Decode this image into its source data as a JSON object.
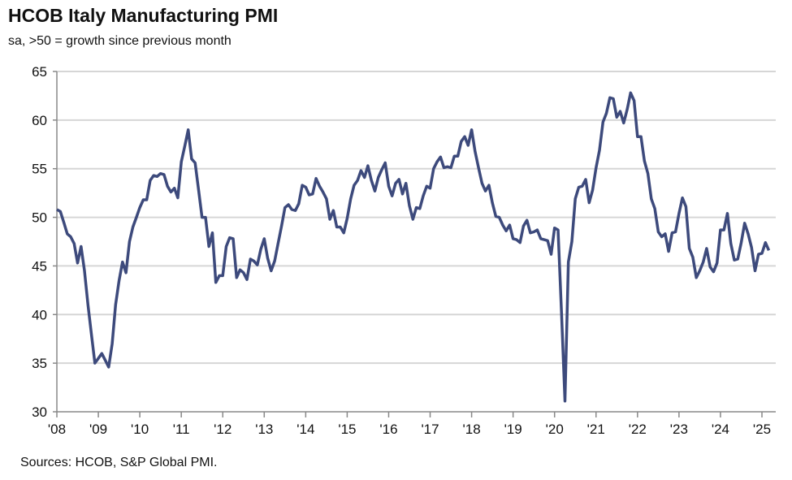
{
  "chart_data": {
    "type": "line",
    "title": "HCOB Italy Manufacturing PMI",
    "subtitle": "sa, >50 = growth since previous month",
    "source": "Sources: HCOB, S&P Global PMI.",
    "xlabel": "",
    "ylabel": "",
    "ylim": [
      30,
      65
    ],
    "yticks": [
      30,
      35,
      40,
      45,
      50,
      55,
      60,
      65
    ],
    "xticks": [
      "'08",
      "'09",
      "'10",
      "'11",
      "'12",
      "'13",
      "'14",
      "'15",
      "'16",
      "'17",
      "'18",
      "'19",
      "'20",
      "'21",
      "'22",
      "'23",
      "'24",
      "'25"
    ],
    "grid": true,
    "legend": "none",
    "line_color": "#3d4a7c",
    "x_start": "2008-01",
    "x_end": "2025-03",
    "frequency": "monthly",
    "series": [
      {
        "values": [
          50.8,
          50.6,
          49.5,
          48.3,
          48.0,
          47.3,
          45.3,
          47.0,
          44.5,
          41.0,
          38.0,
          35.0,
          35.5,
          36.0,
          35.3,
          34.6,
          37.0,
          41.0,
          43.5,
          45.4,
          44.3,
          47.5,
          49.0,
          50.0,
          51.0,
          51.8,
          51.8,
          53.8,
          54.3,
          54.2,
          54.5,
          54.4,
          53.2,
          52.6,
          53.0,
          52.0,
          55.7,
          57.3,
          59.0,
          56.0,
          55.6,
          52.8,
          50.0,
          50.0,
          47.0,
          48.4,
          43.3,
          44.0,
          44.0,
          47.0,
          47.9,
          47.8,
          43.8,
          44.6,
          44.3,
          43.6,
          45.7,
          45.5,
          45.1,
          46.7,
          47.8,
          45.8,
          44.5,
          45.5,
          47.3,
          49.1,
          51.0,
          51.3,
          50.8,
          50.7,
          51.4,
          53.3,
          53.1,
          52.3,
          52.4,
          54.0,
          53.2,
          52.6,
          51.9,
          49.8,
          50.7,
          49.0,
          49.0,
          48.4,
          49.9,
          51.9,
          53.3,
          53.8,
          54.8,
          54.1,
          55.3,
          53.8,
          52.7,
          54.1,
          54.9,
          55.6,
          53.2,
          52.2,
          53.5,
          53.9,
          52.4,
          53.5,
          51.2,
          49.8,
          51.0,
          50.9,
          52.2,
          53.2,
          53.0,
          55.0,
          55.7,
          56.2,
          55.1,
          55.2,
          55.1,
          56.3,
          56.3,
          57.8,
          58.3,
          57.4,
          59.0,
          56.8,
          55.1,
          53.5,
          52.7,
          53.3,
          51.5,
          50.1,
          50.0,
          49.2,
          48.6,
          49.2,
          47.8,
          47.7,
          47.4,
          49.1,
          49.7,
          48.4,
          48.5,
          48.7,
          47.8,
          47.7,
          47.6,
          46.2,
          48.9,
          48.7,
          40.3,
          31.1,
          45.4,
          47.5,
          51.9,
          53.1,
          53.2,
          53.9,
          51.5,
          52.8,
          55.1,
          56.9,
          59.8,
          60.7,
          62.3,
          62.2,
          60.3,
          60.9,
          59.7,
          61.1,
          62.8,
          62.0,
          58.3,
          58.3,
          55.8,
          54.5,
          51.9,
          50.9,
          48.5,
          48.0,
          48.3,
          46.5,
          48.4,
          48.5,
          50.4,
          52.0,
          51.1,
          46.8,
          45.9,
          43.8,
          44.5,
          45.4,
          46.8,
          44.9,
          44.4,
          45.3,
          48.7,
          48.7,
          50.4,
          47.3,
          45.6,
          45.7,
          47.4,
          49.4,
          48.3,
          46.9,
          44.5,
          46.2,
          46.3,
          47.4,
          46.6
        ]
      }
    ]
  }
}
